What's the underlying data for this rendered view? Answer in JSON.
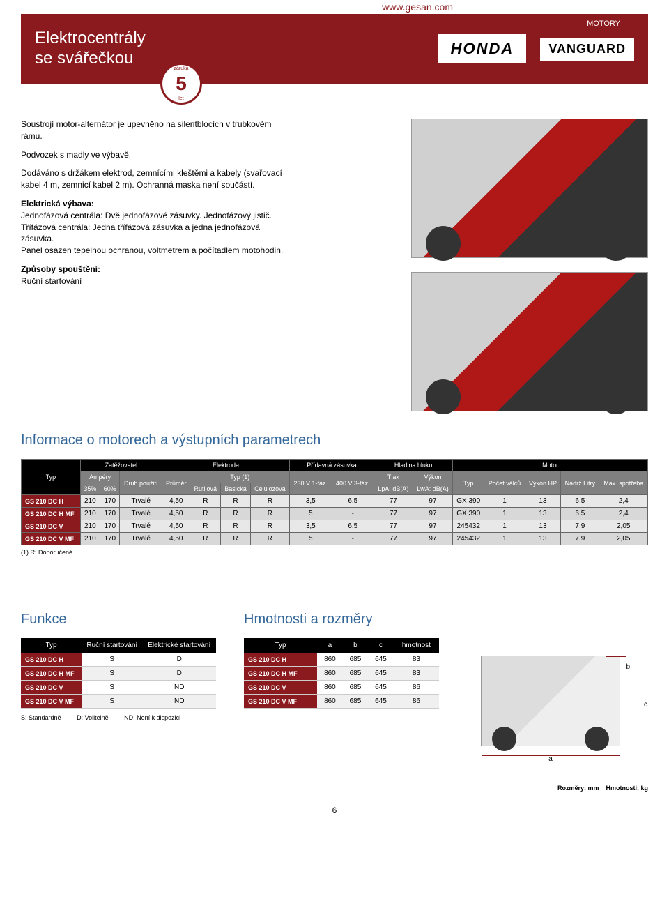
{
  "header": {
    "url": "www.gesan.com",
    "title_line1": "Elektrocentrály",
    "title_line2": "se svářečkou",
    "motory": "MOTORY",
    "honda": "HONDA",
    "vanguard": "VANGUARD",
    "warranty_top": "záruka",
    "warranty_num": "5",
    "warranty_bot": "let"
  },
  "intro": {
    "p1": "Soustrojí motor-alternátor je upevněno na silentblocích v trubkovém rámu.",
    "p2": "Podvozek s madly ve výbavě.",
    "p3": "Dodáváno s držákem elektrod, zemnícími kleštěmi a kabely (svařovací kabel 4 m, zemnicí kabel 2 m). Ochranná maska není součástí.",
    "p4_head": "Elektrická výbava:",
    "p4_body": "Jednofázová centrála: Dvě jednofázové zásuvky. Jednofázový jistič.\nTřífázová centrála: Jedna třífázová zásuvka a jedna jednofázová zásuvka.\nPanel osazen tepelnou ochranou, voltmetrem a počítadlem motohodin.",
    "p5_head": "Způsoby spouštění:",
    "p5_body": "Ruční startování"
  },
  "section_info": "Informace o motorech a výstupních parametrech",
  "main_table": {
    "groups": {
      "zatezovat": "Zatěžovatel",
      "elektroda": "Elektroda",
      "pridavna": "Přídavná zásuvka",
      "hluk": "Hladina hluku",
      "motor": "Motor"
    },
    "headers": {
      "typ": "Typ",
      "ampery": "Ampéry",
      "p35": "35%",
      "p60": "60%",
      "druh": "Druh použití",
      "prumer": "Průměr",
      "typ1": "Typ (1)",
      "rutilova": "Rutilová",
      "basicka": "Basická",
      "celulozova": "Celulozová",
      "v230": "230 V 1-fáz.",
      "v400": "400 V 3-fáz.",
      "tlak": "Tlak",
      "vykon": "Výkon",
      "lpa": "LpA: dB(A)",
      "lwa": "LwA: dB(A)",
      "motor_typ": "Typ",
      "pocet": "Počet válců",
      "vykon_hp": "Výkon HP",
      "nadrz": "Nádrž Litry",
      "max": "Max. spotřeba"
    },
    "rows": [
      {
        "model": "GS 210 DC H",
        "a35": "210",
        "a60": "170",
        "druh": "Trvalé",
        "prumer": "4,50",
        "r1": "R",
        "r2": "R",
        "r3": "R",
        "v230": "3,5",
        "v400": "6,5",
        "lpa": "77",
        "lwa": "97",
        "mtyp": "GX 390",
        "valcu": "1",
        "hp": "13",
        "nadrz": "6,5",
        "max": "2,4"
      },
      {
        "model": "GS 210 DC H MF",
        "a35": "210",
        "a60": "170",
        "druh": "Trvalé",
        "prumer": "4,50",
        "r1": "R",
        "r2": "R",
        "r3": "R",
        "v230": "5",
        "v400": "-",
        "lpa": "77",
        "lwa": "97",
        "mtyp": "GX 390",
        "valcu": "1",
        "hp": "13",
        "nadrz": "6,5",
        "max": "2,4"
      },
      {
        "model": "GS 210 DC V",
        "a35": "210",
        "a60": "170",
        "druh": "Trvalé",
        "prumer": "4,50",
        "r1": "R",
        "r2": "R",
        "r3": "R",
        "v230": "3,5",
        "v400": "6,5",
        "lpa": "77",
        "lwa": "97",
        "mtyp": "245432",
        "valcu": "1",
        "hp": "13",
        "nadrz": "7,9",
        "max": "2,05"
      },
      {
        "model": "GS 210 DC V MF",
        "a35": "210",
        "a60": "170",
        "druh": "Trvalé",
        "prumer": "4,50",
        "r1": "R",
        "r2": "R",
        "r3": "R",
        "v230": "5",
        "v400": "-",
        "lpa": "77",
        "lwa": "97",
        "mtyp": "245432",
        "valcu": "1",
        "hp": "13",
        "nadrz": "7,9",
        "max": "2,05"
      }
    ],
    "note": "(1) R: Doporučené"
  },
  "funkce": {
    "title": "Funkce",
    "headers": {
      "typ": "Typ",
      "rucni": "Ruční startování",
      "elek": "Elektrické startování"
    },
    "rows": [
      {
        "model": "GS 210 DC H",
        "r": "S",
        "e": "D"
      },
      {
        "model": "GS 210 DC H MF",
        "r": "S",
        "e": "D"
      },
      {
        "model": "GS 210 DC V",
        "r": "S",
        "e": "ND"
      },
      {
        "model": "GS 210 DC V MF",
        "r": "S",
        "e": "ND"
      }
    ],
    "legend_s": "S: Standardně",
    "legend_d": "D: Volitelně",
    "legend_nd": "ND: Není k dispozici"
  },
  "rozmery": {
    "title": "Hmotnosti a rozměry",
    "headers": {
      "typ": "Typ",
      "a": "a",
      "b": "b",
      "c": "c",
      "hm": "hmotnost"
    },
    "rows": [
      {
        "model": "GS 210 DC H",
        "a": "860",
        "b": "685",
        "c": "645",
        "hm": "83"
      },
      {
        "model": "GS 210 DC H MF",
        "a": "860",
        "b": "685",
        "c": "645",
        "hm": "83"
      },
      {
        "model": "GS 210 DC V",
        "a": "860",
        "b": "685",
        "c": "645",
        "hm": "86"
      },
      {
        "model": "GS 210 DC V MF",
        "a": "860",
        "b": "685",
        "c": "645",
        "hm": "86"
      }
    ],
    "dim_a": "a",
    "dim_b": "b",
    "dim_c": "c"
  },
  "footer": {
    "rozmery": "Rozměry: mm",
    "hmotnosti": "Hmotnosti: kg"
  },
  "page_num": "6"
}
